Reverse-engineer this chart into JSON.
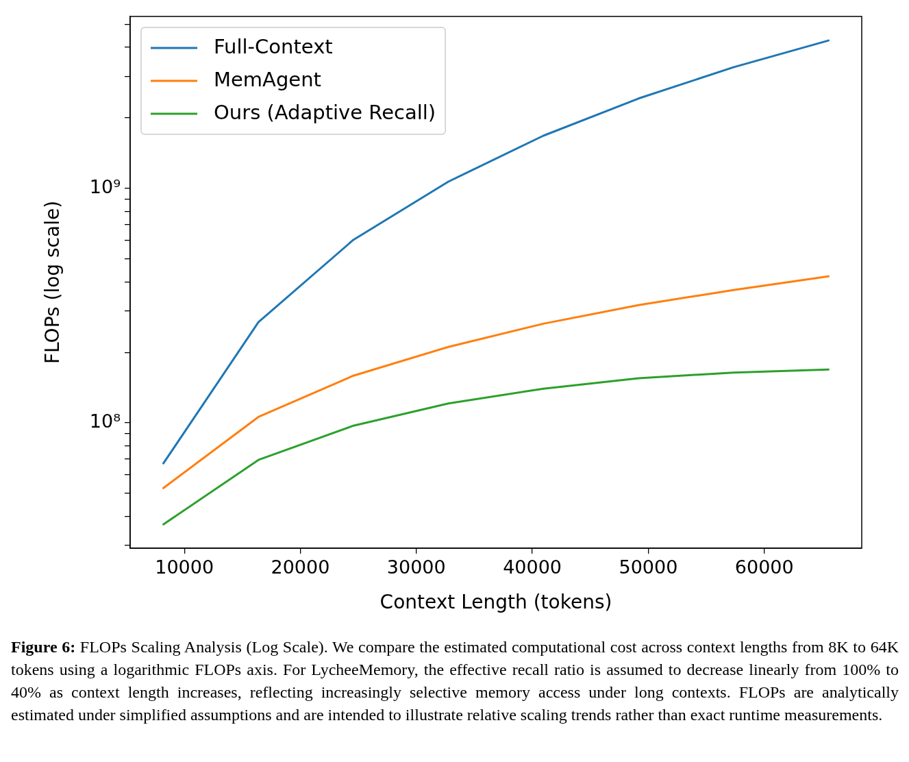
{
  "chart_data": {
    "type": "line",
    "xlabel": "Context Length (tokens)",
    "ylabel": "FLOPs (log scale)",
    "log": "y",
    "legend": "top left",
    "grid": false,
    "marker": "none",
    "line_style": "solid",
    "x": [
      8192,
      16384,
      24576,
      32768,
      40960,
      49152,
      57344,
      65536
    ],
    "xlim": [
      5325,
      68403
    ],
    "xticks": [
      10000,
      20000,
      30000,
      40000,
      50000,
      60000
    ],
    "ylim": [
      29200000.0,
      5420000000.0
    ],
    "yticks": [
      {
        "value": 30000000.0,
        "label": null
      },
      {
        "value": 40000000.0,
        "label": null
      },
      {
        "value": 50000000.0,
        "label": null
      },
      {
        "value": 60000000.0,
        "label": null
      },
      {
        "value": 70000000.0,
        "label": null
      },
      {
        "value": 80000000.0,
        "label": null
      },
      {
        "value": 90000000.0,
        "label": null
      },
      {
        "value": 100000000.0,
        "label": "10⁸"
      },
      {
        "value": 200000000.0,
        "label": null
      },
      {
        "value": 300000000.0,
        "label": null
      },
      {
        "value": 400000000.0,
        "label": null
      },
      {
        "value": 500000000.0,
        "label": null
      },
      {
        "value": 600000000.0,
        "label": null
      },
      {
        "value": 700000000.0,
        "label": null
      },
      {
        "value": 800000000.0,
        "label": null
      },
      {
        "value": 900000000.0,
        "label": null
      },
      {
        "value": 1000000000.0,
        "label": "10⁹"
      },
      {
        "value": 2000000000.0,
        "label": null
      },
      {
        "value": 3000000000.0,
        "label": null
      },
      {
        "value": 4000000000.0,
        "label": null
      },
      {
        "value": 5000000000.0,
        "label": null
      }
    ],
    "series": [
      {
        "name": "Full-Context",
        "color": "#1f77b4",
        "values": [
          67200000.0,
          269000000.0,
          604000000.0,
          1070000000.0,
          1680000000.0,
          2420000000.0,
          3290000000.0,
          4280000000.0
        ]
      },
      {
        "name": "MemAgent",
        "color": "#ff7f0e",
        "values": [
          52700000.0,
          106000000.0,
          159000000.0,
          211000000.0,
          265000000.0,
          318000000.0,
          369000000.0,
          422000000.0
        ]
      },
      {
        "name": "Ours (Adaptive Recall)",
        "color": "#2ca02c",
        "values": [
          36900000.0,
          69500000.0,
          97300000.0,
          121000000.0,
          140000000.0,
          155000000.0,
          164000000.0,
          169000000.0
        ]
      }
    ],
    "annotations": [
      "Figure 6: FLOPs Scaling Analysis (Log Scale). We compare the estimated computational cost across context lengths from 8K to 64K tokens using a logarithmic FLOPs axis. For LycheeMemory, the effective recall ratio is assumed to decrease linearly from 100% to 40% as context length increases, reflecting increasingly selective memory access under long contexts. FLOPs are analytically estimated under simplified assumptions and are intended to illustrate relative scaling trends rather than exact runtime measurements."
    ]
  }
}
